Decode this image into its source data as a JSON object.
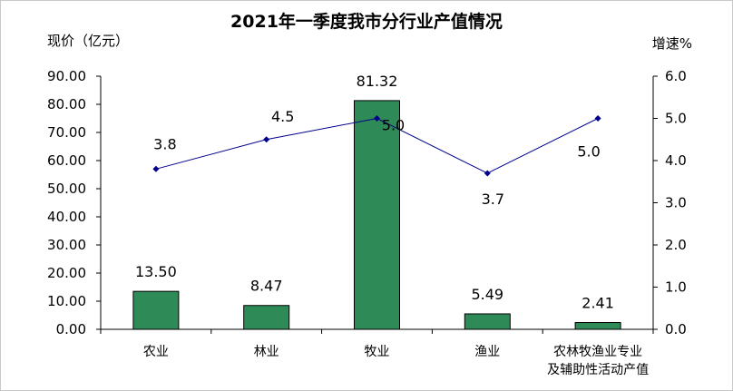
{
  "chart_data": {
    "type": "bar",
    "title": "2021年一季度我市分行业产值情况",
    "categories": [
      [
        "农业"
      ],
      [
        "林业"
      ],
      [
        "牧业"
      ],
      [
        "渔业"
      ],
      [
        "农林牧渔业专业",
        "及辅助性活动产值"
      ]
    ],
    "y_left": {
      "unit": "现价（亿元）",
      "ylim": [
        0,
        90
      ],
      "ticks": [
        "0.00",
        "10.00",
        "20.00",
        "30.00",
        "40.00",
        "50.00",
        "60.00",
        "70.00",
        "80.00",
        "90.00"
      ]
    },
    "y_right": {
      "unit": "增速%",
      "ylim": [
        0,
        6
      ],
      "ticks": [
        "0.0",
        "1.0",
        "2.0",
        "3.0",
        "4.0",
        "5.0",
        "6.0"
      ]
    },
    "series": [
      {
        "kind": "bar",
        "axis": "left",
        "values": [
          13.5,
          8.47,
          81.32,
          5.49,
          2.41
        ],
        "labels": [
          "13.50",
          "8.47",
          "81.32",
          "5.49",
          "2.41"
        ],
        "color": "#2e8b57"
      },
      {
        "kind": "line",
        "axis": "right",
        "values": [
          3.8,
          4.5,
          5.0,
          3.7,
          5.0
        ],
        "labels": [
          "3.8",
          "4.5",
          "5.0",
          "3.7",
          "5.0"
        ],
        "color": "#00008b"
      }
    ],
    "legend": "none",
    "grid": false
  }
}
